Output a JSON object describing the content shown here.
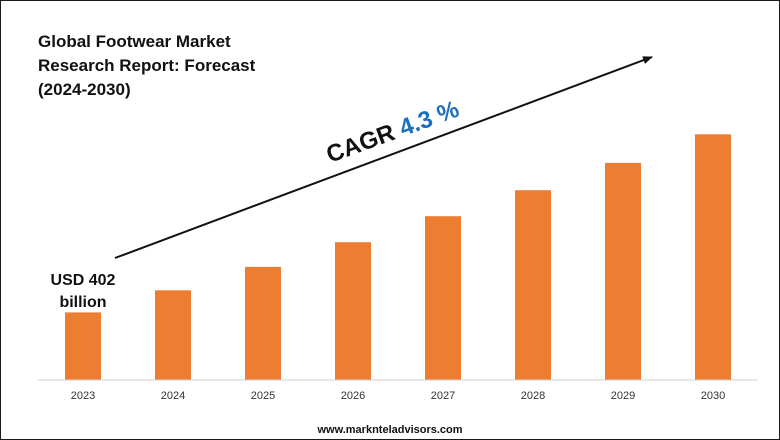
{
  "title": "Global Footwear Market Research Report: Forecast (2024-2030)",
  "cagr": {
    "label": "CAGR",
    "value": "4.3 %",
    "value_color": "#1f6fbf"
  },
  "start_label": "USD 402 billion",
  "footer": "www.marknteladvisors.com",
  "colors": {
    "bar": "#ed7d31",
    "axis": "#d0d0d0",
    "text": "#111111"
  },
  "chart_data": {
    "type": "bar",
    "categories": [
      "2023",
      "2024",
      "2025",
      "2026",
      "2027",
      "2028",
      "2029",
      "2030"
    ],
    "values": [
      402,
      419,
      437,
      456,
      476,
      496,
      517,
      539
    ],
    "title": "Global Footwear Market Research Report: Forecast (2024-2030)",
    "xlabel": "",
    "ylabel": "",
    "grid": false,
    "legend": "none"
  }
}
